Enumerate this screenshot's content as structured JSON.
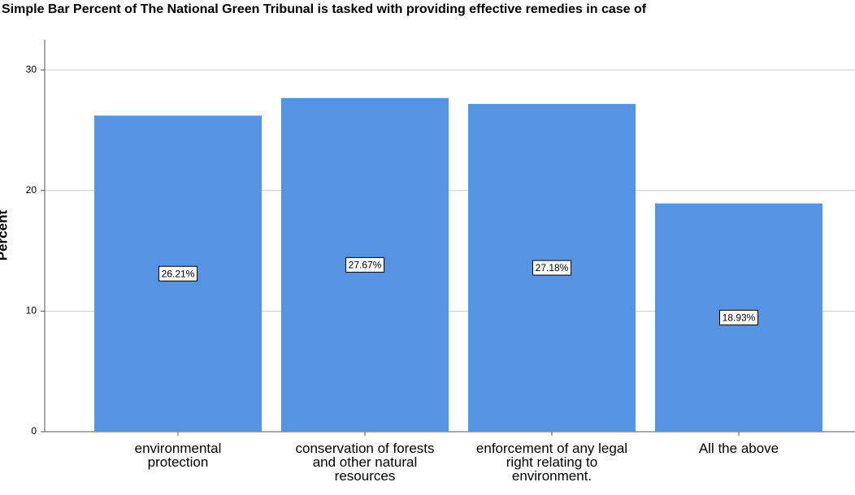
{
  "chart_data": {
    "type": "bar",
    "title": "Simple Bar Percent of The National Green Tribunal is tasked with providing effective remedies in case of",
    "y_label": "Percent",
    "categories": [
      "environmental protection",
      "conservation of forests and other natural resources",
      "enforcement of any legal right relating to environment.",
      "All the above"
    ],
    "values": [
      26.21,
      27.67,
      27.18,
      18.93
    ],
    "value_labels": [
      "26.21%",
      "27.67%",
      "27.18%",
      "18.93%"
    ],
    "color": "#5593e3",
    "ylim": [
      0,
      32.5
    ],
    "yticks": [
      0,
      10,
      20,
      30
    ],
    "grid": true
  }
}
